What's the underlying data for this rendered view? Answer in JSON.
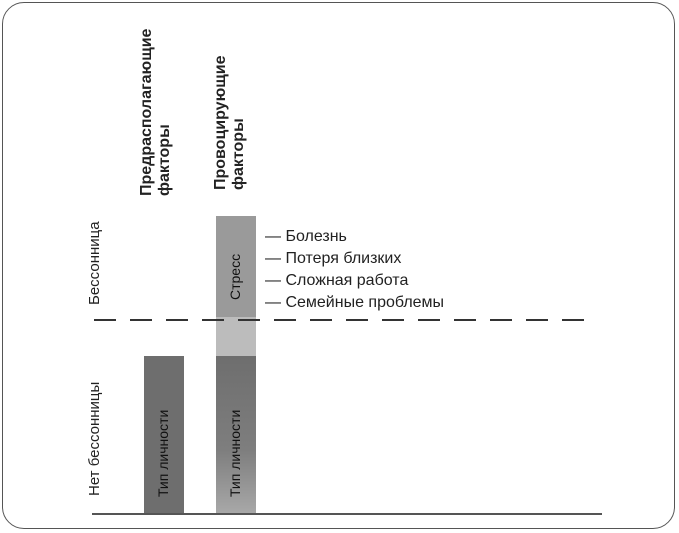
{
  "columns": {
    "predisposing": "Предрасполагающие факторы",
    "predisposing_line1": "Предрасполагающие",
    "predisposing_line2": "факторы",
    "provoking_line1": "Провоцирующие",
    "provoking_line2": "факторы"
  },
  "y_labels": {
    "insomnia": "Бессонница",
    "no_insomnia": "Нет бессонницы"
  },
  "bars": {
    "personality_type": "Тип личности",
    "stress": "Стресс"
  },
  "stress_causes": [
    "— Болезнь",
    "— Потеря близких",
    "— Сложная работа",
    "— Семейные проблемы"
  ],
  "colors": {
    "personality_bar": "#6e6e6e",
    "stress_bar": "#9a9a9a",
    "stress_bar_lower": "#bcbcbc",
    "threshold_line": "#333333",
    "baseline": "#555555"
  }
}
